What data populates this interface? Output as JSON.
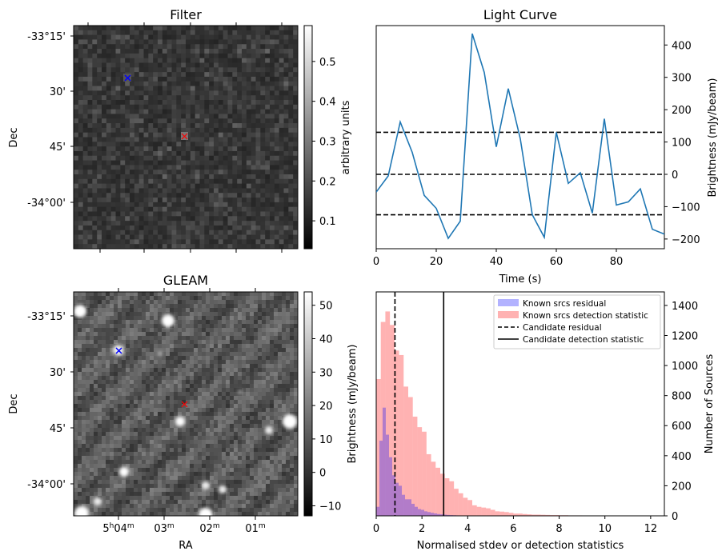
{
  "chart_data": [
    {
      "type": "heatmap",
      "title": "Filter",
      "xlabel": "",
      "ylabel": "Dec",
      "y_tick_labels": [
        "-33°15'",
        "30'",
        "45'",
        "-34°00'"
      ],
      "colorbar": {
        "label": "arbitrary units",
        "ticks": [
          "0.1",
          "0.2",
          "0.3",
          "0.4",
          "0.5"
        ],
        "range": [
          0.03,
          0.59
        ],
        "colormap": "gray"
      },
      "markers": [
        {
          "name": "known source",
          "symbol": "x",
          "color": "#0000ff"
        },
        {
          "name": "candidate",
          "symbol": "x",
          "color": "#ff0000"
        }
      ]
    },
    {
      "type": "line",
      "title": "Light Curve",
      "xlabel": "Time (s)",
      "ylabel": "Brightness (mJy/beam)",
      "xlim": [
        0,
        96
      ],
      "ylim": [
        -230,
        460
      ],
      "x_ticks": [
        "0",
        "20",
        "40",
        "60",
        "80"
      ],
      "y_ticks": [
        "-200",
        "-100",
        "0",
        "100",
        "200",
        "300",
        "400"
      ],
      "series": [
        {
          "color": "#1f77b4",
          "x": [
            0,
            4,
            8,
            12,
            16,
            20,
            24,
            28,
            32,
            36,
            40,
            44,
            48,
            52,
            56,
            60,
            64,
            68,
            72,
            76,
            80,
            84,
            88,
            92,
            96
          ],
          "y": [
            -55,
            -5,
            162,
            68,
            -65,
            -105,
            -198,
            -145,
            435,
            315,
            85,
            265,
            110,
            -125,
            -195,
            130,
            -28,
            5,
            -120,
            172,
            -95,
            -85,
            -45,
            -170,
            -185
          ]
        }
      ],
      "hlines": [
        {
          "y": 130,
          "style": "dashed",
          "color": "#000000"
        },
        {
          "y": 0,
          "style": "dashed",
          "color": "#000000"
        },
        {
          "y": -125,
          "style": "dashed",
          "color": "#000000"
        }
      ]
    },
    {
      "type": "heatmap",
      "title": "GLEAM",
      "xlabel": "RA",
      "ylabel": "Dec",
      "x_tick_labels": [
        "5h04m",
        "03m",
        "02m",
        "01m"
      ],
      "y_tick_labels": [
        "-33°15'",
        "30'",
        "45'",
        "-34°00'"
      ],
      "colorbar": {
        "label": "Brightness (mJy/beam)",
        "ticks": [
          "−10",
          "0",
          "10",
          "20",
          "30",
          "40",
          "50"
        ],
        "range": [
          -13,
          54
        ],
        "colormap": "gray"
      },
      "markers": [
        {
          "name": "known source",
          "symbol": "x",
          "color": "#0000ff"
        },
        {
          "name": "candidate",
          "symbol": "x",
          "color": "#ff0000"
        }
      ]
    },
    {
      "type": "bar",
      "title": "",
      "xlabel": "Normalised stdev or detection statistics",
      "ylabel": "Number of Sources",
      "xlim": [
        0,
        12.6
      ],
      "ylim": [
        0,
        1490
      ],
      "x_ticks": [
        "0",
        "2",
        "4",
        "6",
        "8",
        "10",
        "12"
      ],
      "y_ticks": [
        "0",
        "200",
        "400",
        "600",
        "800",
        "1000",
        "1200",
        "1400"
      ],
      "series": [
        {
          "name": "Known srcs residual",
          "color": "#0000ff",
          "bin_width": 0.14,
          "x_start": 0,
          "values": [
            60,
            500,
            720,
            540,
            390,
            270,
            220,
            200,
            140,
            110,
            110,
            80,
            60,
            45,
            40,
            30,
            25,
            20,
            16,
            12,
            10,
            8,
            6,
            5,
            4,
            3,
            2,
            2,
            1,
            1
          ]
        },
        {
          "name": "Known srcs detection statistic",
          "color": "#ff0000",
          "bin_width": 0.2,
          "x_start": 0,
          "values": [
            910,
            1290,
            1360,
            1270,
            1100,
            1070,
            860,
            790,
            660,
            590,
            560,
            410,
            360,
            320,
            280,
            250,
            230,
            180,
            150,
            120,
            105,
            70,
            60,
            55,
            50,
            40,
            30,
            28,
            25,
            20,
            15,
            15,
            12,
            10,
            8,
            8,
            7,
            6,
            5,
            5,
            4,
            4,
            3,
            3,
            3,
            2,
            2,
            2,
            2,
            1,
            1,
            1,
            1,
            1,
            1,
            1,
            1,
            0,
            0,
            0,
            1
          ]
        }
      ],
      "vlines": [
        {
          "name": "Candidate residual",
          "x": 0.82,
          "style": "dashed",
          "color": "#000000"
        },
        {
          "name": "Candidate detection statistic",
          "x": 2.95,
          "style": "solid",
          "color": "#000000"
        }
      ],
      "left_axis_label": "Brightness (mJy/beam)",
      "legend_position": "top-right"
    }
  ]
}
